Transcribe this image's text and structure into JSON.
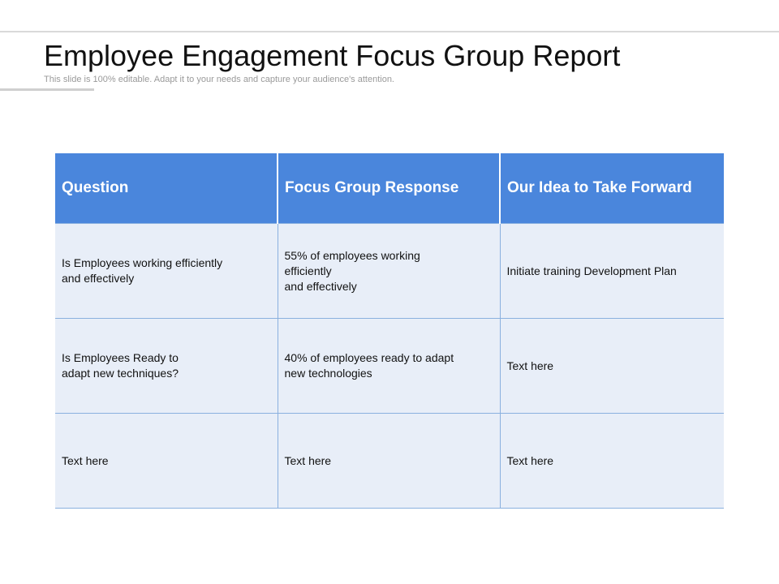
{
  "header": {
    "title": "Employee Engagement Focus Group Report",
    "subtitle": "This slide is 100% editable. Adapt it to your needs and capture your audience's attention."
  },
  "table": {
    "columns": [
      "Question",
      "Focus Group Response",
      "Our Idea to Take Forward"
    ],
    "rows": [
      [
        "Is Employees working efficiently\nand effectively",
        "55% of employees working\nefficiently\n and effectively",
        "Initiate training Development Plan"
      ],
      [
        "Is Employees Ready to\nadapt new techniques?",
        "40% of employees ready to adapt\nnew technologies",
        "Text here"
      ],
      [
        "Text here",
        "Text here",
        "Text here"
      ]
    ]
  },
  "colors": {
    "header_fill": "#4a86dc",
    "cell_fill": "#e8eef8",
    "grid_line": "#8ab0df"
  }
}
